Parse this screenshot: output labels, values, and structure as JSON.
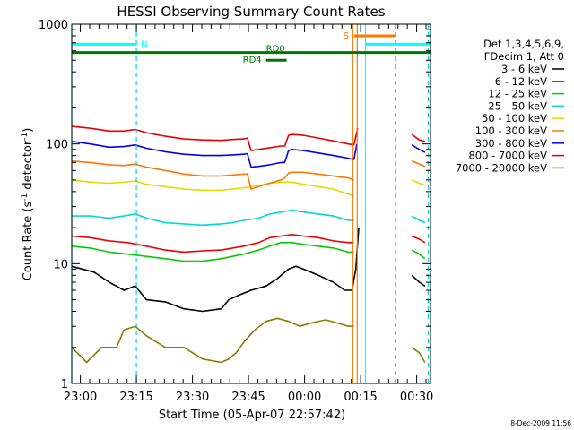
{
  "chart_data": {
    "type": "line",
    "title": "HESSI Observing Summary Count Rates",
    "xlabel": "Start Time (05-Apr-07 22:57:42)",
    "ylabel_base": "Count Rate (s",
    "ylabel_sup1": "-1",
    "ylabel_mid": " detector",
    "ylabel_sup2": "-1",
    "ylabel_end": ")",
    "yscale": "log",
    "ylim": [
      1,
      1000
    ],
    "xlim_minutes": [
      0,
      96
    ],
    "x_ticks": [
      {
        "m": 2.3,
        "label": "23:00"
      },
      {
        "m": 17.3,
        "label": "23:15"
      },
      {
        "m": 32.3,
        "label": "23:30"
      },
      {
        "m": 47.3,
        "label": "23:45"
      },
      {
        "m": 62.3,
        "label": "00:00"
      },
      {
        "m": 77.3,
        "label": "00:15"
      },
      {
        "m": 92.3,
        "label": "00:30"
      }
    ],
    "y_ticks": [
      {
        "v": 1,
        "label": "1"
      },
      {
        "v": 10,
        "label": "10"
      },
      {
        "v": 100,
        "label": "100"
      },
      {
        "v": 1000,
        "label": "1000"
      }
    ],
    "legend_header": [
      "Det 1,3,4,5,6,9,",
      "FDecim 1, Att 0"
    ],
    "series": [
      {
        "name": "3 - 6 keV",
        "color": "#000000",
        "segments": [
          [
            [
              0,
              9.5
            ],
            [
              6,
              8.5
            ],
            [
              10,
              7
            ],
            [
              14,
              6
            ],
            [
              17,
              6.5
            ],
            [
              20,
              5
            ],
            [
              25,
              4.8
            ],
            [
              30,
              4.2
            ],
            [
              35,
              4
            ],
            [
              40,
              4.2
            ],
            [
              42,
              5
            ],
            [
              45,
              5.5
            ],
            [
              48,
              6
            ],
            [
              52,
              6.5
            ],
            [
              55,
              7.5
            ],
            [
              58,
              9
            ],
            [
              60,
              9.5
            ],
            [
              62,
              9
            ],
            [
              66,
              8
            ],
            [
              70,
              7
            ],
            [
              73,
              6
            ],
            [
              75,
              6
            ],
            [
              76,
              9
            ],
            [
              76.8,
              20
            ]
          ],
          [
            [
              91,
              8
            ],
            [
              93,
              7
            ],
            [
              94.5,
              6.5
            ]
          ]
        ]
      },
      {
        "name": "6 - 12 keV",
        "color": "#ee0000",
        "segments": [
          [
            [
              0,
              17
            ],
            [
              5,
              16.5
            ],
            [
              10,
              15.5
            ],
            [
              15,
              15
            ],
            [
              20,
              14
            ],
            [
              25,
              13
            ],
            [
              30,
              12.5
            ],
            [
              35,
              12.8
            ],
            [
              40,
              13
            ],
            [
              43,
              13.5
            ],
            [
              46,
              14
            ],
            [
              50,
              15
            ],
            [
              53,
              16.5
            ],
            [
              56,
              17
            ],
            [
              59,
              17.5
            ],
            [
              62,
              17
            ],
            [
              66,
              16.5
            ],
            [
              70,
              15.5
            ],
            [
              74,
              15
            ],
            [
              75.5,
              15
            ]
          ],
          [
            [
              91,
              17
            ],
            [
              93,
              16
            ],
            [
              94.5,
              15
            ]
          ]
        ]
      },
      {
        "name": "12 - 25 keV",
        "color": "#00cc00",
        "segments": [
          [
            [
              0,
              14
            ],
            [
              5,
              13.5
            ],
            [
              10,
              12.5
            ],
            [
              15,
              12
            ],
            [
              20,
              11.5
            ],
            [
              25,
              11
            ],
            [
              30,
              10.5
            ],
            [
              35,
              10.5
            ],
            [
              40,
              11
            ],
            [
              43,
              11.5
            ],
            [
              46,
              12
            ],
            [
              50,
              13
            ],
            [
              53,
              14
            ],
            [
              56,
              15
            ],
            [
              59,
              15
            ],
            [
              62,
              14.5
            ],
            [
              66,
              14
            ],
            [
              70,
              13.5
            ],
            [
              74,
              12.5
            ],
            [
              75.5,
              12.5
            ]
          ],
          [
            [
              91,
              13
            ],
            [
              93,
              12
            ],
            [
              94.5,
              11
            ]
          ]
        ]
      },
      {
        "name": "25 - 50 keV",
        "color": "#00d8d8",
        "segments": [
          [
            [
              0,
              25
            ],
            [
              5,
              25
            ],
            [
              10,
              24
            ],
            [
              14,
              25
            ],
            [
              17,
              26
            ],
            [
              20,
              24
            ],
            [
              25,
              22
            ],
            [
              30,
              21.5
            ],
            [
              35,
              21
            ],
            [
              40,
              21.5
            ],
            [
              43,
              22
            ],
            [
              46,
              23
            ],
            [
              50,
              24
            ],
            [
              53,
              26
            ],
            [
              56,
              27
            ],
            [
              59,
              28
            ],
            [
              62,
              27
            ],
            [
              66,
              26
            ],
            [
              70,
              25
            ],
            [
              74,
              23
            ],
            [
              75.5,
              23
            ]
          ],
          [
            [
              91,
              25
            ],
            [
              93,
              23
            ],
            [
              94.5,
              22
            ]
          ]
        ]
      },
      {
        "name": "50 - 100 keV",
        "color": "#dddd00",
        "segments": [
          [
            [
              0,
              50
            ],
            [
              5,
              48
            ],
            [
              10,
              47
            ],
            [
              14,
              48
            ],
            [
              17,
              49
            ],
            [
              20,
              46
            ],
            [
              25,
              44
            ],
            [
              30,
              42
            ],
            [
              35,
              41
            ],
            [
              40,
              41
            ],
            [
              43,
              42
            ],
            [
              46,
              43
            ],
            [
              50,
              45
            ],
            [
              53,
              47
            ],
            [
              56,
              48
            ],
            [
              59,
              48
            ],
            [
              62,
              46
            ],
            [
              66,
              44
            ],
            [
              70,
              42
            ],
            [
              74,
              38
            ],
            [
              75.5,
              37
            ]
          ],
          [
            [
              91,
              50
            ],
            [
              93,
              47
            ],
            [
              94.5,
              45
            ]
          ]
        ]
      },
      {
        "name": "100 - 300 keV",
        "color": "#ff7700",
        "segments": [
          [
            [
              0,
              72
            ],
            [
              5,
              70
            ],
            [
              10,
              67
            ],
            [
              14,
              66
            ],
            [
              17,
              68
            ],
            [
              20,
              64
            ],
            [
              25,
              60
            ],
            [
              30,
              56
            ],
            [
              35,
              54
            ],
            [
              40,
              54
            ],
            [
              43,
              55
            ],
            [
              46,
              56
            ],
            [
              47,
              56
            ],
            [
              48,
              42
            ],
            [
              50,
              44
            ],
            [
              53,
              47
            ],
            [
              56,
              50
            ],
            [
              57,
              52
            ],
            [
              58,
              57
            ],
            [
              59,
              58
            ],
            [
              62,
              58
            ],
            [
              66,
              56
            ],
            [
              70,
              54
            ],
            [
              74,
              52
            ],
            [
              75.5,
              50
            ]
          ],
          [
            [
              91,
              72
            ],
            [
              93,
              68
            ],
            [
              94.5,
              65
            ]
          ]
        ]
      },
      {
        "name": "300 - 800 keV",
        "color": "#0000ee",
        "segments": [
          [
            [
              0,
              105
            ],
            [
              5,
              100
            ],
            [
              10,
              94
            ],
            [
              14,
              95
            ],
            [
              17,
              98
            ],
            [
              20,
              92
            ],
            [
              25,
              86
            ],
            [
              30,
              82
            ],
            [
              35,
              80
            ],
            [
              40,
              80
            ],
            [
              43,
              81
            ],
            [
              46,
              82
            ],
            [
              47,
              83
            ],
            [
              48,
              64
            ],
            [
              50,
              65
            ],
            [
              53,
              67
            ],
            [
              56,
              70
            ],
            [
              57,
              70
            ],
            [
              58,
              88
            ],
            [
              59,
              90
            ],
            [
              62,
              88
            ],
            [
              66,
              84
            ],
            [
              70,
              80
            ],
            [
              74,
              76
            ],
            [
              75.5,
              74
            ],
            [
              76.3,
              100
            ]
          ],
          [
            [
              91,
              98
            ],
            [
              93,
              90
            ],
            [
              94.5,
              85
            ]
          ]
        ]
      },
      {
        "name": "800 - 7000 keV",
        "color": "#e80000",
        "segments": [
          [
            [
              0,
              140
            ],
            [
              5,
              135
            ],
            [
              10,
              128
            ],
            [
              14,
              128
            ],
            [
              17,
              132
            ],
            [
              20,
              124
            ],
            [
              25,
              116
            ],
            [
              30,
              110
            ],
            [
              35,
              108
            ],
            [
              40,
              107
            ],
            [
              43,
              109
            ],
            [
              46,
              110
            ],
            [
              47,
              112
            ],
            [
              48,
              88
            ],
            [
              50,
              90
            ],
            [
              53,
              93
            ],
            [
              56,
              96
            ],
            [
              57,
              96
            ],
            [
              58,
              118
            ],
            [
              59,
              120
            ],
            [
              62,
              118
            ],
            [
              66,
              112
            ],
            [
              70,
              106
            ],
            [
              74,
              100
            ],
            [
              75.5,
              98
            ],
            [
              76.5,
              135
            ]
          ],
          [
            [
              91,
              120
            ],
            [
              93,
              108
            ],
            [
              94.5,
              105
            ]
          ]
        ]
      },
      {
        "name": "7000 - 20000 keV",
        "color": "#808000",
        "segments": [
          [
            [
              0,
              2
            ],
            [
              4,
              1.5
            ],
            [
              8,
              2
            ],
            [
              12,
              2
            ],
            [
              14,
              2.8
            ],
            [
              17,
              3
            ],
            [
              20,
              2.5
            ],
            [
              25,
              2
            ],
            [
              30,
              2
            ],
            [
              35,
              1.6
            ],
            [
              40,
              1.5
            ],
            [
              42,
              1.6
            ],
            [
              44,
              1.8
            ],
            [
              46,
              2.2
            ],
            [
              49,
              2.8
            ],
            [
              52,
              3.3
            ],
            [
              55,
              3.5
            ],
            [
              58,
              3.3
            ],
            [
              61,
              3
            ],
            [
              64,
              3.2
            ],
            [
              68,
              3.4
            ],
            [
              71,
              3.2
            ],
            [
              74,
              3
            ],
            [
              75.5,
              3
            ]
          ],
          [
            [
              91,
              2
            ],
            [
              93,
              1.8
            ],
            [
              94.5,
              1.5
            ]
          ]
        ]
      }
    ],
    "annotations": {
      "N": "N",
      "RD0": "RD0",
      "RD4": "RD4",
      "S": "S"
    },
    "flag_bars": [
      {
        "label_key": "N",
        "color": "#00ffff",
        "x0": 0,
        "x1": 17.3,
        "v": 680
      },
      {
        "label_key": "RD0",
        "color": "#007700",
        "x0": 0,
        "x1": 96,
        "v": 580
      },
      {
        "label_key": "RD4",
        "color": "#007700",
        "x0": 52,
        "x1": 57.5,
        "v": 500
      },
      {
        "label_key": "S",
        "color": "#ff7700",
        "x0": 75.5,
        "x1": 86.5,
        "v": 800
      },
      {
        "label_key": "",
        "color": "#00ffff",
        "x0": 78.5,
        "x1": 96,
        "v": 680
      }
    ],
    "vlines": [
      {
        "m": 0,
        "color": "#00ffff",
        "dash": false
      },
      {
        "m": 17.3,
        "color": "#00d8d8",
        "dash": true
      },
      {
        "m": 75.2,
        "color": "#ff7700",
        "dash": false
      },
      {
        "m": 76.4,
        "color": "#ff7700",
        "dash": false
      },
      {
        "m": 78.6,
        "color": "#00ffff",
        "dash": false
      },
      {
        "m": 86.6,
        "color": "#ff7700",
        "dash": true
      },
      {
        "m": 95.4,
        "color": "#00d8d8",
        "dash": true
      }
    ],
    "footer_date": "8-Dec-2009 11:56"
  }
}
